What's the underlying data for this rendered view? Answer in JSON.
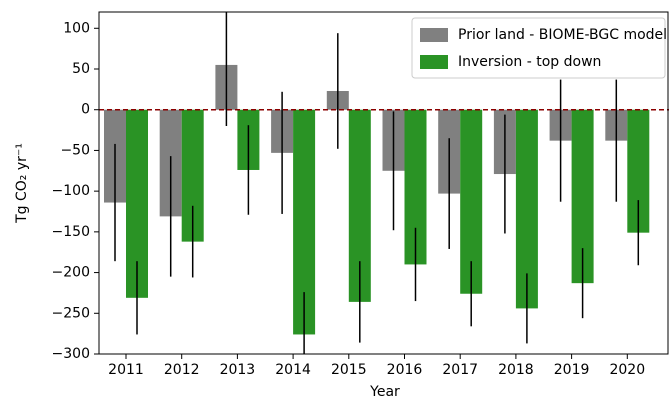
{
  "chart_data": {
    "type": "bar",
    "x_label": "Year",
    "y_label": "Tg CO₂ yr⁻¹",
    "categories": [
      "2011",
      "2012",
      "2013",
      "2014",
      "2015",
      "2016",
      "2017",
      "2018",
      "2019",
      "2020"
    ],
    "series": [
      {
        "name": "Prior land - BIOME-BGC model",
        "color": "#808080",
        "values": [
          -114,
          -131,
          55,
          -53,
          23,
          -75,
          -103,
          -79,
          -38,
          -38
        ],
        "errors": [
          72,
          74,
          75,
          75,
          71,
          73,
          68,
          73,
          75,
          75
        ]
      },
      {
        "name": "Inversion - top down",
        "color": "#2a9325",
        "values": [
          -231,
          -162,
          -74,
          -276,
          -236,
          -190,
          -226,
          -244,
          -213,
          -151
        ],
        "errors": [
          45,
          44,
          55,
          52,
          50,
          45,
          40,
          43,
          43,
          40
        ]
      }
    ],
    "error_color": "#000000",
    "reference_line": {
      "value": 0,
      "color": "#8b0000"
    },
    "ylim": [
      -300,
      120
    ],
    "yticks": [
      {
        "value": -300,
        "label": "−300"
      },
      {
        "value": -250,
        "label": "−250"
      },
      {
        "value": -200,
        "label": "−200"
      },
      {
        "value": -150,
        "label": "−150"
      },
      {
        "value": -100,
        "label": "−100"
      },
      {
        "value": -50,
        "label": "−50"
      },
      0,
      50,
      100
    ],
    "legend": "upper right",
    "grid": false
  }
}
